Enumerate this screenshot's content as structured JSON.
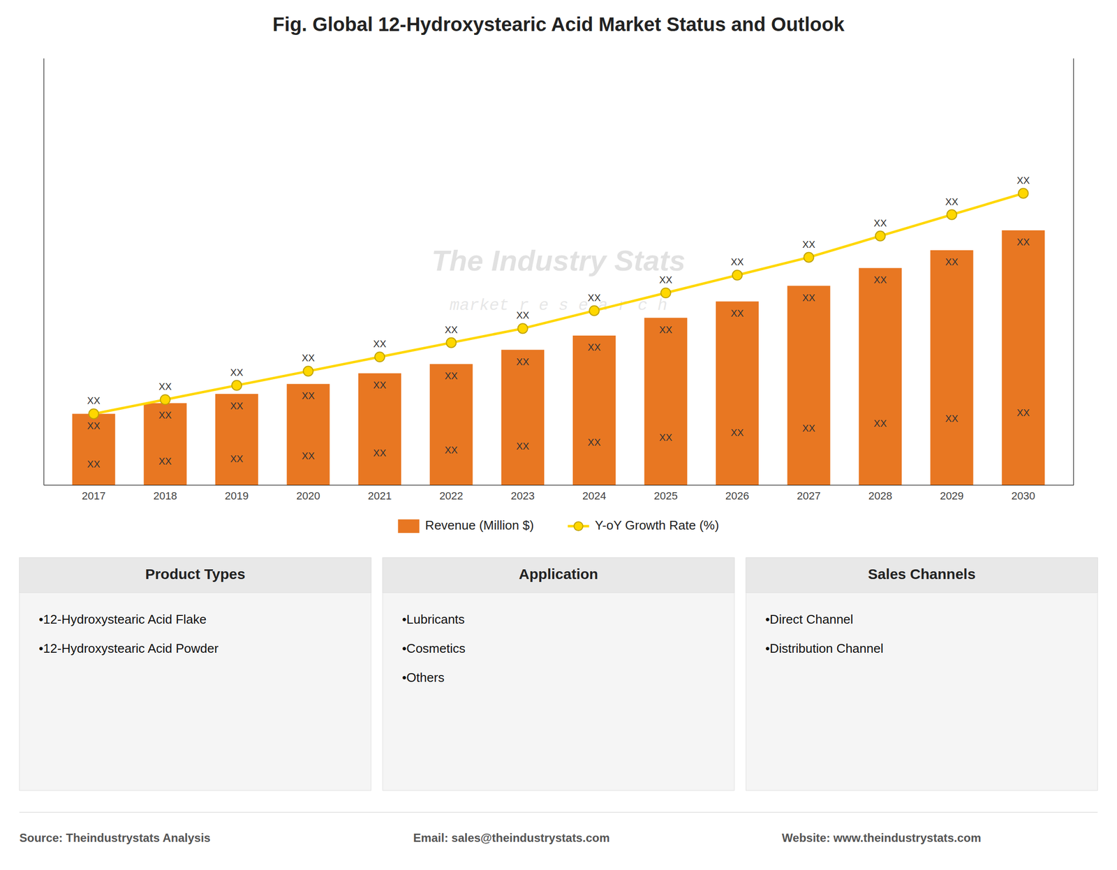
{
  "chart_data": {
    "type": "bar",
    "title": "Fig. Global 12-Hydroxystearic Acid Market Status and Outlook",
    "categories": [
      "2017",
      "2018",
      "2019",
      "2020",
      "2021",
      "2022",
      "2023",
      "2024",
      "2025",
      "2026",
      "2027",
      "2028",
      "2029",
      "2030"
    ],
    "series": [
      {
        "name": "Revenue (Million $)",
        "type": "bar",
        "color": "#E87722",
        "values": [
          1.0,
          1.15,
          1.28,
          1.42,
          1.57,
          1.7,
          1.9,
          2.1,
          2.35,
          2.58,
          2.8,
          3.05,
          3.3,
          3.58
        ]
      },
      {
        "name": "Y-oY Growth Rate (%)",
        "type": "line",
        "axis": "y2",
        "color": "#FFD700",
        "marker": "circle",
        "values": [
          3.5,
          3.7,
          3.9,
          4.1,
          4.3,
          4.5,
          4.7,
          4.95,
          5.2,
          5.45,
          5.7,
          6.0,
          6.3,
          6.6
        ]
      }
    ],
    "ylim": [
      0,
      6.0
    ],
    "yticks": [],
    "y2lim": [
      2.5,
      8.5
    ],
    "y2ticks": [],
    "grid": false,
    "legend": "bottom",
    "tick_labels": "x",
    "annotation": "XX",
    "watermark": [
      "The Industry Stats",
      "market  r e s e a r c h"
    ]
  },
  "info_sections": [
    {
      "title": "Product Types",
      "items": [
        "•12-Hydroxystearic Acid Flake",
        "•12-Hydroxystearic Acid Powder"
      ]
    },
    {
      "title": "Application",
      "items": [
        "•Lubricants",
        "•Cosmetics",
        "•Others"
      ]
    },
    {
      "title": "Sales Channels",
      "items": [
        "•Direct Channel",
        "•Distribution Channel"
      ]
    }
  ],
  "footer": [
    "Source: Theindustrystats Analysis",
    "Email: sales@theindustrystats.com",
    "Website: www.theindustrystats.com"
  ]
}
